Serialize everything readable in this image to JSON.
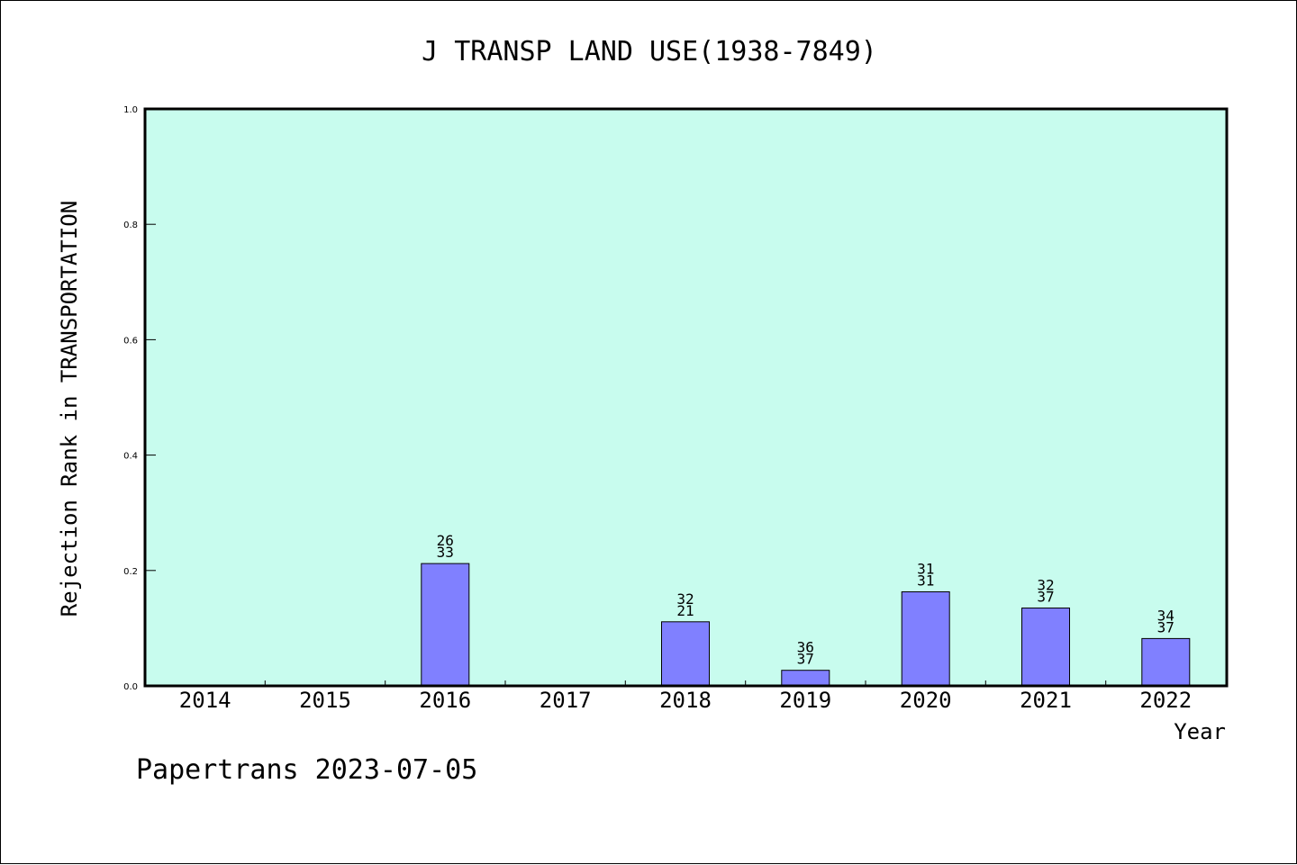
{
  "chart_data": {
    "type": "bar",
    "title": "J TRANSP LAND USE(1938-7849)",
    "xlabel": "Year",
    "ylabel": "Rejection Rank in TRANSPORTATION",
    "ylim": [
      0,
      1.0
    ],
    "yticks": [
      "0.0",
      "0.2",
      "0.4",
      "0.6",
      "0.8",
      "1.0"
    ],
    "categories": [
      "2014",
      "2015",
      "2016",
      "2017",
      "2018",
      "2019",
      "2020",
      "2021",
      "2022"
    ],
    "values": [
      0,
      0,
      0.212,
      0,
      0.111,
      0.027,
      0.163,
      0.135,
      0.082
    ],
    "labels": [
      null,
      null,
      [
        "26",
        "33"
      ],
      null,
      [
        "32",
        "21"
      ],
      [
        "36",
        "37"
      ],
      [
        "31",
        "31"
      ],
      [
        "32",
        "37"
      ],
      [
        "34",
        "37"
      ]
    ],
    "grid": false,
    "colors": {
      "plot_background": "#c8fcee",
      "bar": "#8080ff",
      "axis": "#000000"
    }
  },
  "footer": "Papertrans 2023-07-05"
}
